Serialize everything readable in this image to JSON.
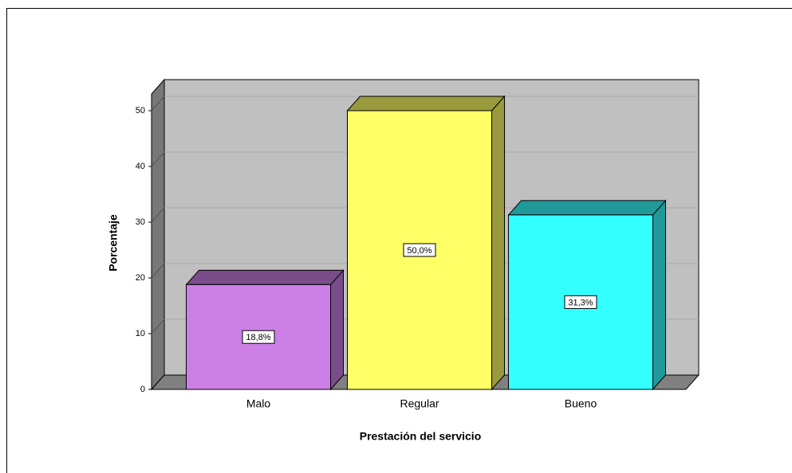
{
  "chart_data": {
    "type": "bar3d",
    "xlabel": "Prestación del servicio",
    "ylabel": "Porcentaje",
    "categories": [
      "Malo",
      "Regular",
      "Bueno"
    ],
    "values": [
      18.8,
      50.0,
      31.3
    ],
    "value_labels": [
      "18,8%",
      "50,0%",
      "31,3%"
    ],
    "colors": [
      "#cc80e6",
      "#ffff66",
      "#33ffff"
    ],
    "ylim": [
      0,
      53
    ],
    "yticks": [
      0,
      10,
      20,
      30,
      40,
      50
    ],
    "grid": true
  }
}
